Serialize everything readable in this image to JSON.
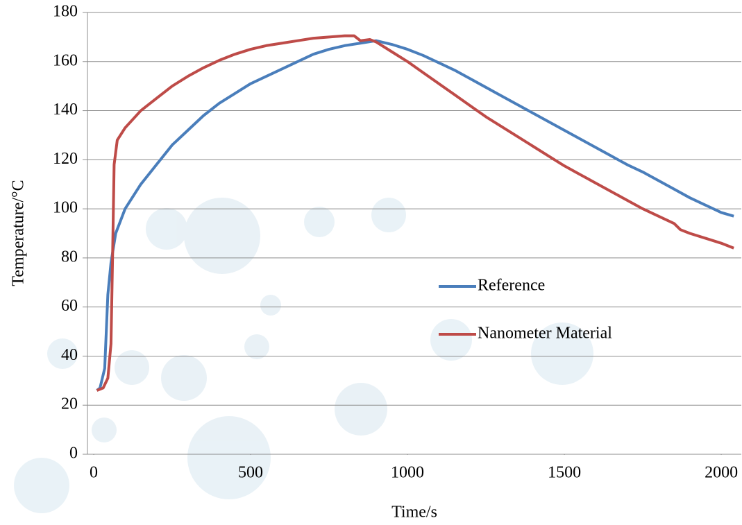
{
  "chart_data": {
    "type": "line",
    "xlabel": "Time/s",
    "ylabel": "Temperature/°C",
    "xlim": [
      -20,
      2064
    ],
    "xticks": [
      0,
      500,
      1000,
      1500,
      2000
    ],
    "ylim": [
      0,
      180
    ],
    "yticks": [
      0,
      20,
      40,
      60,
      80,
      100,
      120,
      140,
      160,
      180
    ],
    "grid": true,
    "legend": "right",
    "series": [
      {
        "name": "Reference",
        "color": "#4a7ebb",
        "x": [
          10,
          20,
          35,
          45,
          55,
          70,
          100,
          150,
          200,
          250,
          300,
          350,
          400,
          450,
          500,
          550,
          600,
          650,
          700,
          750,
          800,
          850,
          900,
          950,
          1000,
          1050,
          1100,
          1150,
          1200,
          1250,
          1300,
          1350,
          1400,
          1450,
          1500,
          1550,
          1600,
          1650,
          1700,
          1750,
          1800,
          1850,
          1900,
          1950,
          2000,
          2040
        ],
        "values": [
          26,
          27,
          35,
          65,
          78,
          90,
          100,
          110,
          118,
          126,
          132,
          138,
          143,
          147,
          151,
          154,
          157,
          160,
          163,
          165,
          166.5,
          167.5,
          168.5,
          167,
          165,
          162.5,
          159.5,
          156.5,
          153,
          149.5,
          146,
          142.5,
          139,
          135.5,
          132,
          128.5,
          125,
          121.5,
          118,
          115,
          111.5,
          108,
          104.5,
          101.5,
          98.5,
          97
        ]
      },
      {
        "name": "Nanometer Material",
        "color": "#be4b48",
        "x": [
          10,
          30,
          45,
          55,
          60,
          65,
          75,
          100,
          150,
          200,
          250,
          300,
          350,
          400,
          450,
          500,
          550,
          600,
          650,
          700,
          750,
          800,
          830,
          850,
          880,
          900,
          950,
          1000,
          1050,
          1100,
          1150,
          1200,
          1250,
          1300,
          1350,
          1400,
          1450,
          1500,
          1550,
          1600,
          1650,
          1700,
          1750,
          1800,
          1850,
          1870,
          1900,
          1950,
          2000,
          2040
        ],
        "values": [
          26,
          27,
          31,
          45,
          80,
          118,
          128,
          133,
          140,
          145,
          150,
          154,
          157.5,
          160.5,
          163,
          165,
          166.5,
          167.5,
          168.5,
          169.5,
          170,
          170.5,
          170.5,
          168.5,
          169,
          168,
          164,
          160,
          155.5,
          151,
          146.5,
          142,
          137.5,
          133.5,
          129.5,
          125.5,
          121.5,
          117.5,
          114,
          110.5,
          107,
          103.5,
          100,
          97,
          94,
          91.5,
          90,
          88,
          86,
          84
        ]
      }
    ]
  }
}
